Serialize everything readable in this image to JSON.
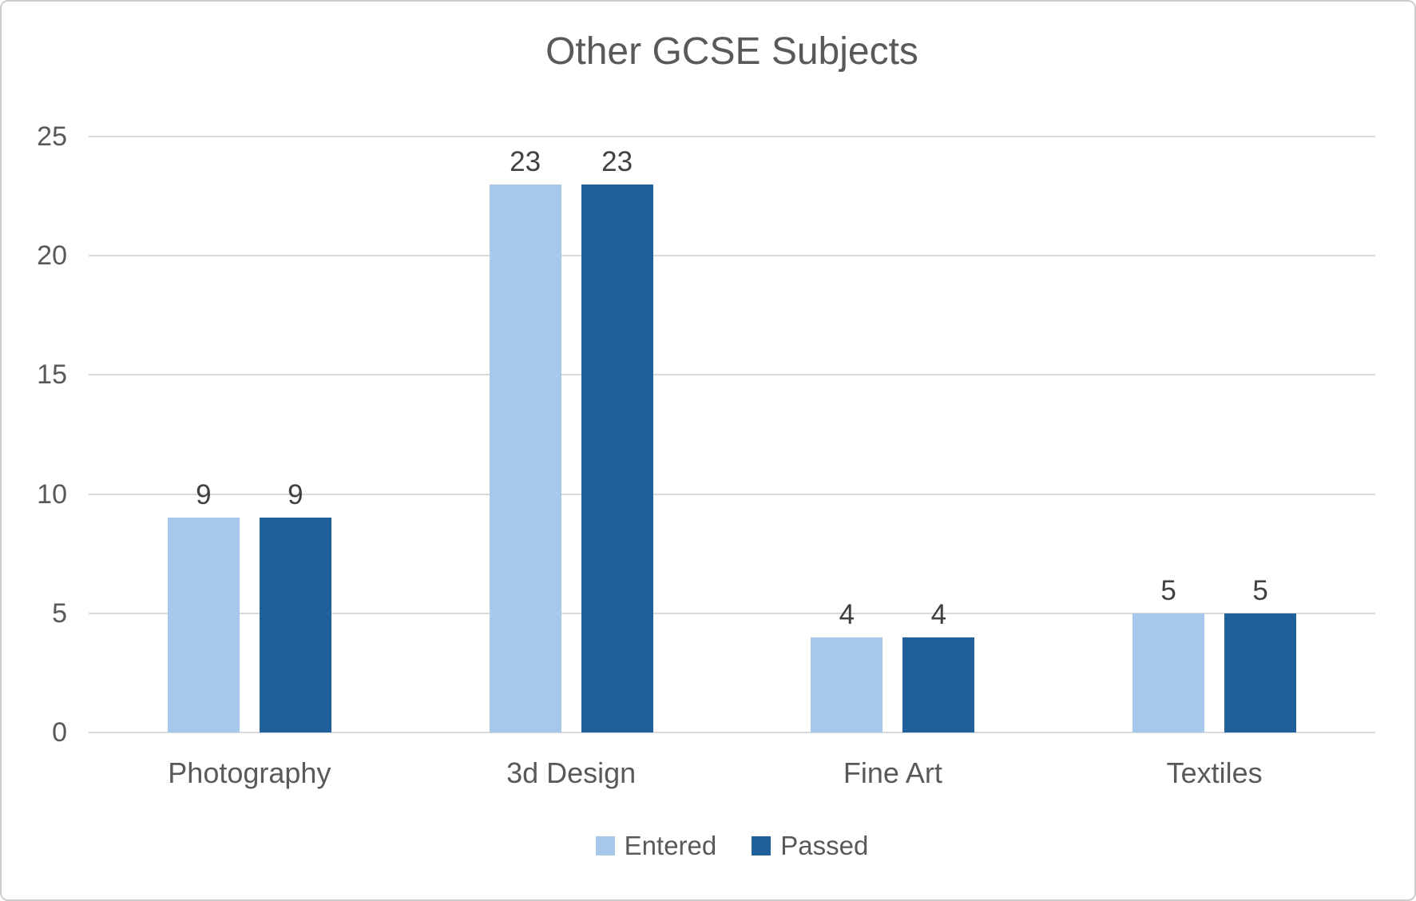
{
  "title": "Other GCSE Subjects",
  "chart_data": {
    "type": "bar",
    "title": "Other GCSE Subjects",
    "categories": [
      "Photography",
      "3d Design",
      "Fine Art",
      "Textiles"
    ],
    "series": [
      {
        "name": "Entered",
        "values": [
          9,
          23,
          4,
          5
        ],
        "color": "#A5C8EB"
      },
      {
        "name": "Passed",
        "values": [
          9,
          23,
          4,
          5
        ],
        "color": "#20609B"
      }
    ],
    "ylim": [
      0,
      25
    ],
    "yticks": [
      0,
      5,
      10,
      15,
      20,
      25
    ],
    "grid": true,
    "data_labels": true,
    "legend_position": "bottom"
  },
  "colors": {
    "series_entered": "#A5C8EB",
    "series_passed": "#20609B",
    "gridline": "#D9D9D9",
    "axis_text": "#595959",
    "data_label_text": "#404040",
    "title_text": "#595959",
    "frame_border": "#CDCDCD",
    "background": "#FFFFFF"
  }
}
